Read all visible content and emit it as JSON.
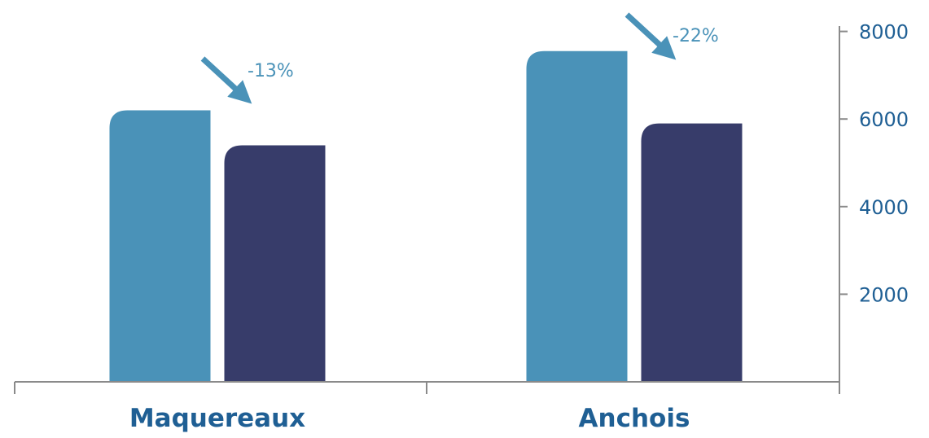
{
  "chart_data": {
    "type": "bar",
    "categories": [
      "Maquereaux",
      "Anchois"
    ],
    "series": [
      {
        "values": [
          6200,
          7550
        ],
        "color": "#4a92b8"
      },
      {
        "values": [
          5400,
          5900
        ],
        "color": "#373c6a"
      }
    ],
    "annotations": [
      "-13%",
      "-22%"
    ],
    "y_ticks": [
      "8000",
      "6000",
      "4000",
      "2000"
    ],
    "y_tick_values": [
      8000,
      6000,
      4000,
      2000
    ],
    "ylim": [
      0,
      8000
    ],
    "y_axis_side": "right",
    "grid": false,
    "legend": "none",
    "colors": {
      "axis": "#8a8a8a",
      "label": "#1f5f94",
      "arrow": "#4a92b8"
    }
  }
}
